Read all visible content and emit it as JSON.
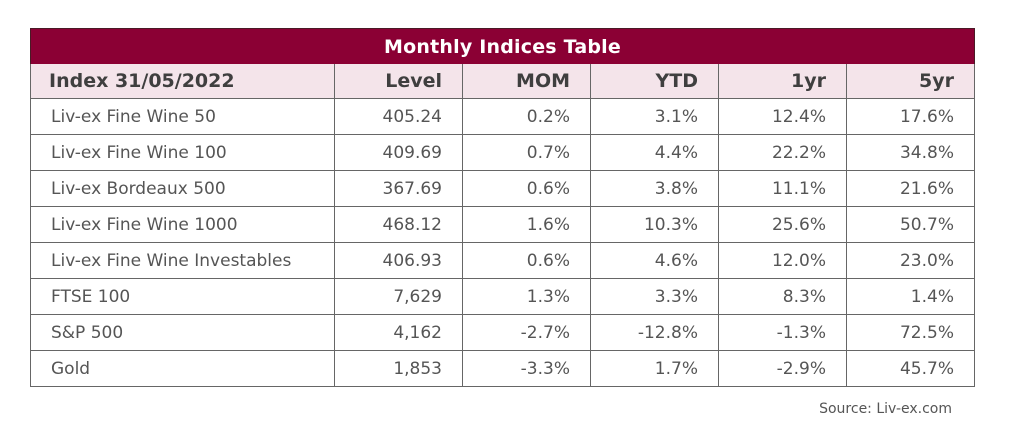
{
  "table": {
    "title": "Monthly Indices Table",
    "headers": [
      "Index 31/05/2022",
      "Level",
      "MOM",
      "YTD",
      "1yr",
      "5yr"
    ],
    "rows": [
      [
        "Liv-ex Fine Wine 50",
        "405.24",
        "0.2%",
        "3.1%",
        "12.4%",
        "17.6%"
      ],
      [
        "Liv-ex Fine Wine 100",
        "409.69",
        "0.7%",
        "4.4%",
        "22.2%",
        "34.8%"
      ],
      [
        "Liv-ex Bordeaux 500",
        "367.69",
        "0.6%",
        "3.8%",
        "11.1%",
        "21.6%"
      ],
      [
        "Liv-ex Fine Wine 1000",
        "468.12",
        "1.6%",
        "10.3%",
        "25.6%",
        "50.7%"
      ],
      [
        "Liv-ex Fine Wine Investables",
        "406.93",
        "0.6%",
        "4.6%",
        "12.0%",
        "23.0%"
      ],
      [
        "FTSE 100",
        "7,629",
        "1.3%",
        "3.3%",
        "8.3%",
        "1.4%"
      ],
      [
        "S&P 500",
        "4,162",
        "-2.7%",
        "-12.8%",
        "-1.3%",
        "72.5%"
      ],
      [
        "Gold",
        "1,853",
        "-3.3%",
        "1.7%",
        "-2.9%",
        "45.7%"
      ]
    ]
  },
  "source": "Source: Liv-ex.com",
  "colors": {
    "title_bg": "#8b0034",
    "header_bg": "#f4e4ea",
    "border": "#666666",
    "text": "#555555"
  }
}
